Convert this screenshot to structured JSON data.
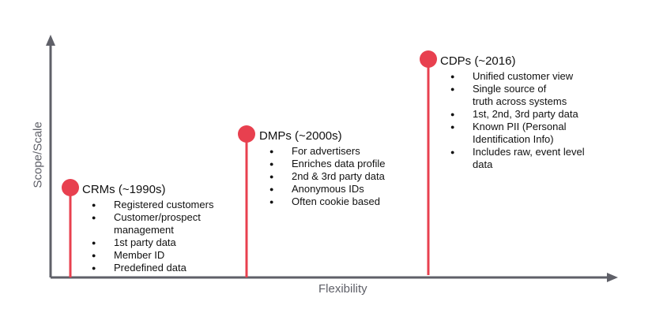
{
  "axes": {
    "x_label": "Flexibility",
    "y_label": "Scope/Scale",
    "color": "#5f6068"
  },
  "marker_color": "#e8404f",
  "eras": [
    {
      "title": "CRMs (~1990s)",
      "items": [
        "Registered customers",
        "Customer/prospect management",
        "1st party data",
        "Member ID",
        "Predefined data"
      ]
    },
    {
      "title": "DMPs (~2000s)",
      "items": [
        "For advertisers",
        "Enriches data profile",
        "2nd & 3rd party data",
        "Anonymous IDs",
        "Often cookie based"
      ]
    },
    {
      "title": "CDPs (~2016)",
      "items": [
        "Unified customer view",
        "Single source of truth across systems",
        "1st, 2nd, 3rd party data",
        "Known PII (Personal Identification Info)",
        "Includes raw, event level data"
      ]
    }
  ]
}
